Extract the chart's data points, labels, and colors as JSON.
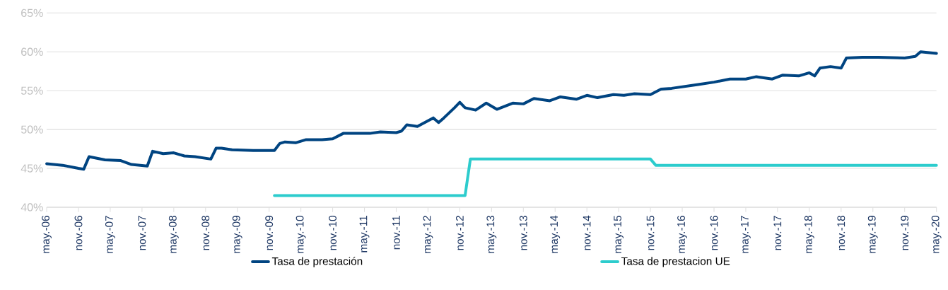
{
  "chart_data": {
    "type": "line",
    "ylim": [
      40,
      65
    ],
    "yticks": [
      {
        "value": 40,
        "label": "40%"
      },
      {
        "value": 45,
        "label": "45%"
      },
      {
        "value": 50,
        "label": "50%"
      },
      {
        "value": 55,
        "label": "55%"
      },
      {
        "value": 60,
        "label": "60%"
      },
      {
        "value": 65,
        "label": "65%"
      }
    ],
    "xlim": [
      "2006-05",
      "2020-05"
    ],
    "xticks": [
      {
        "value": "2006-05",
        "label": "may.-06"
      },
      {
        "value": "2006-11",
        "label": "nov.-06"
      },
      {
        "value": "2007-05",
        "label": "may.-07"
      },
      {
        "value": "2007-11",
        "label": "nov.-07"
      },
      {
        "value": "2008-05",
        "label": "may.-08"
      },
      {
        "value": "2008-11",
        "label": "nov.-08"
      },
      {
        "value": "2009-05",
        "label": "may.-09"
      },
      {
        "value": "2009-11",
        "label": "nov.-09"
      },
      {
        "value": "2010-05",
        "label": "may.-10"
      },
      {
        "value": "2010-11",
        "label": "nov.-10"
      },
      {
        "value": "2011-05",
        "label": "may.-11"
      },
      {
        "value": "2011-11",
        "label": "nov.-11"
      },
      {
        "value": "2012-05",
        "label": "may.-12"
      },
      {
        "value": "2012-11",
        "label": "nov.-12"
      },
      {
        "value": "2013-05",
        "label": "may.-13"
      },
      {
        "value": "2013-11",
        "label": "nov.-13"
      },
      {
        "value": "2014-05",
        "label": "may.-14"
      },
      {
        "value": "2014-11",
        "label": "nov.-14"
      },
      {
        "value": "2015-05",
        "label": "may.-15"
      },
      {
        "value": "2015-11",
        "label": "nov.-15"
      },
      {
        "value": "2016-05",
        "label": "may.-16"
      },
      {
        "value": "2016-11",
        "label": "nov.-16"
      },
      {
        "value": "2017-05",
        "label": "may.-17"
      },
      {
        "value": "2017-11",
        "label": "nov.-17"
      },
      {
        "value": "2018-05",
        "label": "may.-18"
      },
      {
        "value": "2018-11",
        "label": "nov.-18"
      },
      {
        "value": "2019-05",
        "label": "may.-19"
      },
      {
        "value": "2019-11",
        "label": "nov.-19"
      },
      {
        "value": "2020-05",
        "label": "may.-20"
      }
    ],
    "grid": "y",
    "legend": "bottom",
    "line_style": "solid",
    "series": [
      {
        "name": "Tasa de prestación",
        "color": "#004481",
        "x": [
          "2006-05",
          "2006-08",
          "2006-11",
          "2006-12",
          "2007-01",
          "2007-04",
          "2007-07",
          "2007-09",
          "2007-12",
          "2008-01",
          "2008-03",
          "2008-05",
          "2008-07",
          "2008-09",
          "2008-12",
          "2009-01",
          "2009-02",
          "2009-04",
          "2009-08",
          "2009-12",
          "2010-01",
          "2010-02",
          "2010-04",
          "2010-06",
          "2010-09",
          "2010-11",
          "2011-01",
          "2011-06",
          "2011-08",
          "2011-11",
          "2011-12",
          "2012-01",
          "2012-03",
          "2012-06",
          "2012-07",
          "2012-08",
          "2012-10",
          "2012-11",
          "2012-12",
          "2013-02",
          "2013-04",
          "2013-06",
          "2013-09",
          "2013-11",
          "2014-01",
          "2014-04",
          "2014-06",
          "2014-09",
          "2014-11",
          "2015-01",
          "2015-04",
          "2015-06",
          "2015-08",
          "2015-11",
          "2016-01",
          "2016-03",
          "2016-06",
          "2016-08",
          "2016-11",
          "2017-02",
          "2017-05",
          "2017-07",
          "2017-10",
          "2017-12",
          "2018-03",
          "2018-05",
          "2018-06",
          "2018-07",
          "2018-09",
          "2018-11",
          "2018-12",
          "2019-03",
          "2019-06",
          "2019-11",
          "2020-01",
          "2020-02",
          "2020-05"
        ],
        "values": [
          45.6,
          45.4,
          45.0,
          44.9,
          46.5,
          46.1,
          46.0,
          45.5,
          45.3,
          47.2,
          46.9,
          47.0,
          46.6,
          46.5,
          46.2,
          47.6,
          47.6,
          47.4,
          47.3,
          47.3,
          48.2,
          48.4,
          48.3,
          48.7,
          48.7,
          48.8,
          49.5,
          49.5,
          49.7,
          49.6,
          49.8,
          50.6,
          50.4,
          51.5,
          50.9,
          51.5,
          52.8,
          53.5,
          52.8,
          52.5,
          53.4,
          52.6,
          53.4,
          53.3,
          54.0,
          53.7,
          54.2,
          53.9,
          54.4,
          54.1,
          54.5,
          54.4,
          54.6,
          54.5,
          55.2,
          55.3,
          55.6,
          55.8,
          56.1,
          56.5,
          56.5,
          56.8,
          56.5,
          57.0,
          56.9,
          57.3,
          56.9,
          57.9,
          58.1,
          57.9,
          59.2,
          59.3,
          59.3,
          59.2,
          59.4,
          60.0,
          59.8
        ]
      },
      {
        "name": "Tasa de prestacion UE",
        "color": "#2dcccd",
        "x": [
          "2009-12",
          "2012-12",
          "2013-01",
          "2015-11",
          "2015-12",
          "2020-05"
        ],
        "values": [
          41.5,
          41.5,
          46.2,
          46.2,
          45.4,
          45.4
        ]
      }
    ]
  }
}
